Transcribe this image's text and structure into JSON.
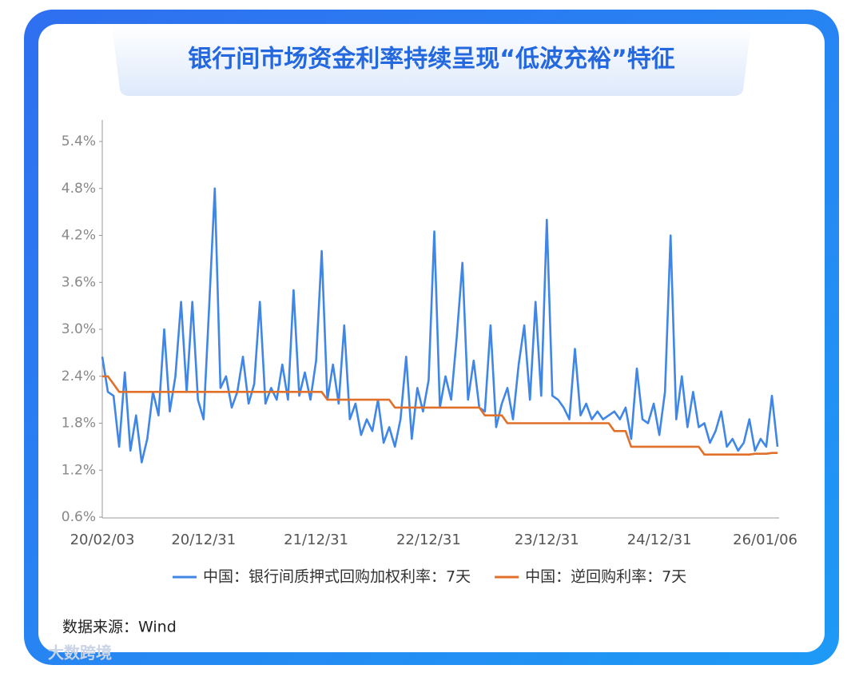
{
  "chart_data": {
    "type": "line",
    "title": "银行间市场资金利率持续呈现“低波充裕”特征",
    "source": "数据来源：Wind",
    "watermark": "大数跨境",
    "categories": [
      "20/02/03",
      null,
      null,
      null,
      null,
      null,
      null,
      null,
      null,
      null,
      null,
      null,
      null,
      null,
      null,
      null,
      null,
      null,
      "20/12/31",
      null,
      null,
      null,
      null,
      null,
      null,
      null,
      null,
      null,
      null,
      null,
      null,
      null,
      null,
      null,
      null,
      null,
      null,
      null,
      "21/12/31",
      null,
      null,
      null,
      null,
      null,
      null,
      null,
      null,
      null,
      null,
      null,
      null,
      null,
      null,
      null,
      null,
      null,
      null,
      null,
      "22/12/31",
      null,
      null,
      null,
      null,
      null,
      null,
      null,
      null,
      null,
      null,
      null,
      null,
      null,
      null,
      null,
      null,
      null,
      null,
      null,
      null,
      "23/12/31",
      null,
      null,
      null,
      null,
      null,
      null,
      null,
      null,
      null,
      null,
      null,
      null,
      null,
      null,
      null,
      null,
      null,
      null,
      null,
      "24/12/31",
      null,
      null,
      null,
      null,
      null,
      null,
      null,
      null,
      null,
      null,
      null,
      null,
      null,
      null,
      null,
      null,
      null,
      null,
      null,
      null,
      "26/01/06"
    ],
    "series": [
      {
        "name": "中国：银行间质押式回购加权利率：7天",
        "color": "#3f86e6",
        "values": [
          2.65,
          2.2,
          2.15,
          1.5,
          2.45,
          1.45,
          1.9,
          1.3,
          1.6,
          2.2,
          1.9,
          3.0,
          1.95,
          2.4,
          3.35,
          2.2,
          3.35,
          2.1,
          1.85,
          3.3,
          4.8,
          2.25,
          2.4,
          2.0,
          2.2,
          2.65,
          2.05,
          2.3,
          3.35,
          2.05,
          2.25,
          2.1,
          2.55,
          2.1,
          3.5,
          2.15,
          2.45,
          2.1,
          2.6,
          4.0,
          2.1,
          2.55,
          2.05,
          3.05,
          1.85,
          2.05,
          1.65,
          1.85,
          1.7,
          2.1,
          1.55,
          1.75,
          1.5,
          1.85,
          2.65,
          1.6,
          2.25,
          1.95,
          2.35,
          4.25,
          2.0,
          2.4,
          2.1,
          2.9,
          3.85,
          2.1,
          2.6,
          2.0,
          1.95,
          3.05,
          1.75,
          2.05,
          2.25,
          1.85,
          2.55,
          3.05,
          2.1,
          3.35,
          2.15,
          4.4,
          2.15,
          2.1,
          2.0,
          1.85,
          2.75,
          1.9,
          2.05,
          1.85,
          1.95,
          1.85,
          1.9,
          1.95,
          1.85,
          2.0,
          1.6,
          2.5,
          1.85,
          1.8,
          2.05,
          1.65,
          2.2,
          4.2,
          1.85,
          2.4,
          1.75,
          2.2,
          1.75,
          1.8,
          1.55,
          1.7,
          1.95,
          1.5,
          1.6,
          1.45,
          1.55,
          1.85,
          1.45,
          1.6,
          1.5,
          2.15,
          1.5
        ]
      },
      {
        "name": "中国：逆回购利率：7天",
        "color": "#e0702a",
        "values": [
          2.4,
          2.4,
          2.3,
          2.2,
          2.2,
          2.2,
          2.2,
          2.2,
          2.2,
          2.2,
          2.2,
          2.2,
          2.2,
          2.2,
          2.2,
          2.2,
          2.2,
          2.2,
          2.2,
          2.2,
          2.2,
          2.2,
          2.2,
          2.2,
          2.2,
          2.2,
          2.2,
          2.2,
          2.2,
          2.2,
          2.2,
          2.2,
          2.2,
          2.2,
          2.2,
          2.2,
          2.2,
          2.2,
          2.2,
          2.2,
          2.1,
          2.1,
          2.1,
          2.1,
          2.1,
          2.1,
          2.1,
          2.1,
          2.1,
          2.1,
          2.1,
          2.1,
          2.0,
          2.0,
          2.0,
          2.0,
          2.0,
          2.0,
          2.0,
          2.0,
          2.0,
          2.0,
          2.0,
          2.0,
          2.0,
          2.0,
          2.0,
          2.0,
          1.9,
          1.9,
          1.9,
          1.9,
          1.8,
          1.8,
          1.8,
          1.8,
          1.8,
          1.8,
          1.8,
          1.8,
          1.8,
          1.8,
          1.8,
          1.8,
          1.8,
          1.8,
          1.8,
          1.8,
          1.8,
          1.8,
          1.8,
          1.7,
          1.7,
          1.7,
          1.5,
          1.5,
          1.5,
          1.5,
          1.5,
          1.5,
          1.5,
          1.5,
          1.5,
          1.5,
          1.5,
          1.5,
          1.5,
          1.4,
          1.4,
          1.4,
          1.4,
          1.4,
          1.4,
          1.4,
          1.4,
          1.4,
          1.41,
          1.41,
          1.41,
          1.42,
          1.42
        ]
      }
    ],
    "ylim": [
      0.6,
      5.4
    ],
    "yticks": [
      {
        "value": 0.6,
        "label": "0.6%"
      },
      {
        "value": 1.2,
        "label": "1.2%"
      },
      {
        "value": 1.8,
        "label": "1.8%"
      },
      {
        "value": 2.4,
        "label": "2.4%"
      },
      {
        "value": 3.0,
        "label": "3.0%"
      },
      {
        "value": 3.6,
        "label": "3.6%"
      },
      {
        "value": 4.2,
        "label": "4.2%"
      },
      {
        "value": 4.8,
        "label": "4.8%"
      },
      {
        "value": 5.4,
        "label": "5.4%"
      }
    ],
    "grid": false
  }
}
